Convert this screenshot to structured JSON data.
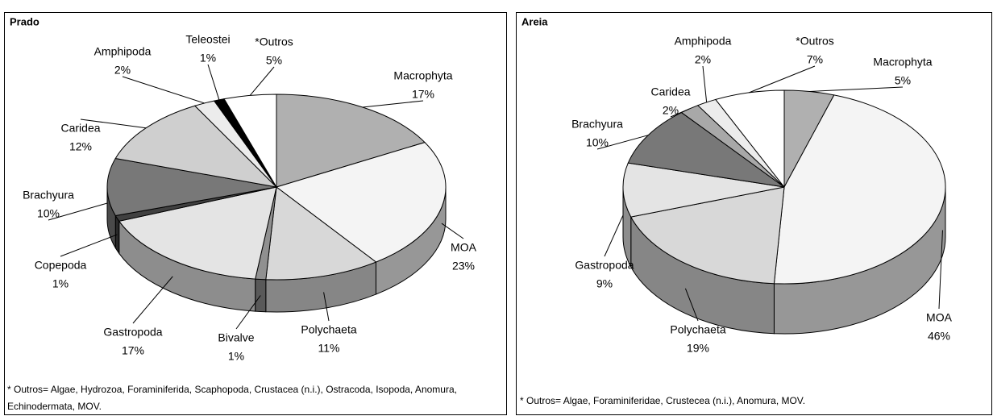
{
  "chart_data": [
    {
      "type": "pie3d",
      "title": "Prado",
      "categories": [
        "Macrophyta",
        "MOA",
        "Polychaeta",
        "Bivalve",
        "Gastropoda",
        "Copepoda",
        "Brachyura",
        "Caridea",
        "Amphipoda",
        "Teleostei",
        "*Outros"
      ],
      "values": [
        17,
        23,
        11,
        1,
        17,
        1,
        10,
        12,
        2,
        1,
        5
      ],
      "value_labels": [
        "17%",
        "23%",
        "11%",
        "1%",
        "17%",
        "1%",
        "10%",
        "12%",
        "2%",
        "1%",
        "5%"
      ],
      "colors": [
        "#b0b0b0",
        "#f4f4f4",
        "#d8d8d8",
        "#909090",
        "#e4e4e4",
        "#404040",
        "#787878",
        "#cfcfcf",
        "#ececec",
        "#000000",
        "#ffffff"
      ],
      "note": "* Outros= Algae, Hydrozoa, Foraminiferida, Scaphopoda, Crustacea (n.i.), Ostracoda, Isopoda,  Anomura, Echinodermata, MOV."
    },
    {
      "type": "pie3d",
      "title": "Areia",
      "categories": [
        "Macrophyta",
        "MOA",
        "Polychaeta",
        "Gastropoda",
        "Brachyura",
        "Caridea",
        "Amphipoda",
        "*Outros"
      ],
      "values": [
        5,
        46,
        19,
        9,
        10,
        2,
        2,
        7
      ],
      "value_labels": [
        "5%",
        "46%",
        "19%",
        "9%",
        "10%",
        "2%",
        "2%",
        "7%"
      ],
      "colors": [
        "#b0b0b0",
        "#f4f4f4",
        "#d8d8d8",
        "#e4e4e4",
        "#787878",
        "#a8a8a8",
        "#ececec",
        "#ffffff"
      ],
      "note": "* Outros= Algae, Foraminiferidae, Crustecea (n.i.), Anomura, MOV."
    }
  ]
}
